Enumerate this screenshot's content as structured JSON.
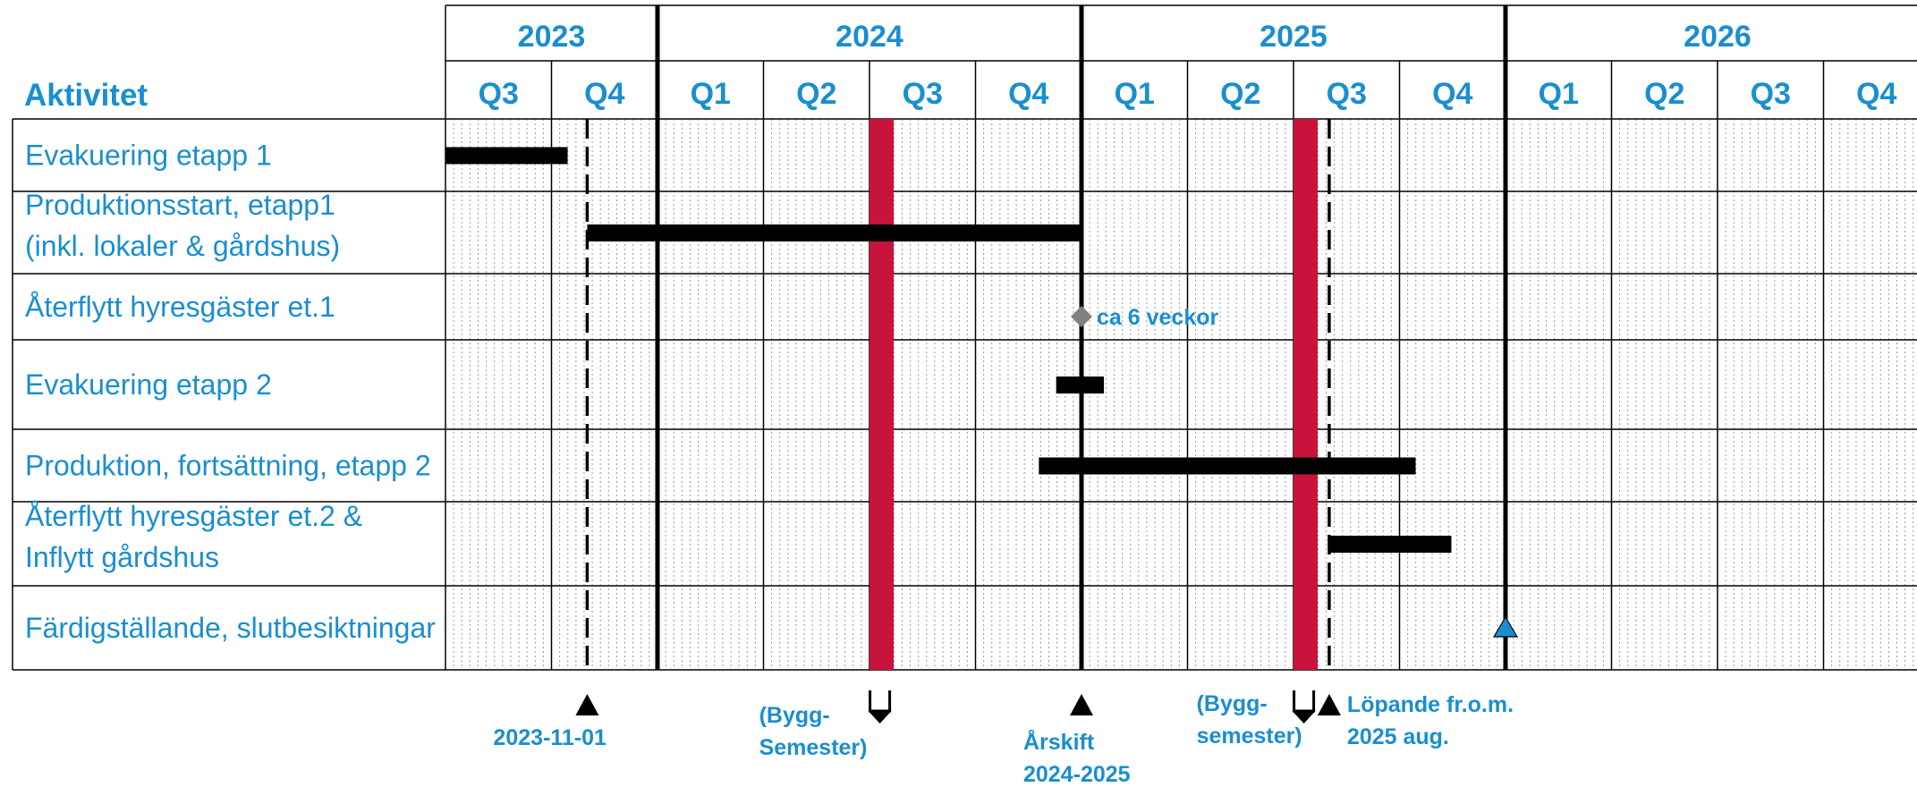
{
  "chart_data": {
    "type": "gantt",
    "activity_header": "Aktivitet",
    "years": [
      "2023",
      "2024",
      "2025",
      "2026"
    ],
    "quarters": [
      {
        "year": "2023",
        "label": "Q3"
      },
      {
        "year": "2023",
        "label": "Q4"
      },
      {
        "year": "2024",
        "label": "Q1"
      },
      {
        "year": "2024",
        "label": "Q2"
      },
      {
        "year": "2024",
        "label": "Q3"
      },
      {
        "year": "2024",
        "label": "Q4"
      },
      {
        "year": "2025",
        "label": "Q1"
      },
      {
        "year": "2025",
        "label": "Q2"
      },
      {
        "year": "2025",
        "label": "Q3"
      },
      {
        "year": "2025",
        "label": "Q4"
      },
      {
        "year": "2026",
        "label": "Q1"
      },
      {
        "year": "2026",
        "label": "Q2"
      },
      {
        "year": "2026",
        "label": "Q3"
      },
      {
        "year": "2026",
        "label": "Q4"
      }
    ],
    "time_range": [
      "2023-07-01",
      "2027-01-01"
    ],
    "activities": [
      {
        "lines": [
          "Evakuering etapp 1"
        ],
        "bar": {
          "start": "2023-07-01",
          "end": "2023-10-15"
        }
      },
      {
        "lines": [
          "Produktionsstart, etapp1",
          "(inkl. lokaler & gårdshus)"
        ],
        "bar": {
          "start": "2023-11-01",
          "end": "2025-01-01"
        }
      },
      {
        "lines": [
          "Återflytt hyresgäster et.1"
        ],
        "milestone": {
          "date": "2025-01-01",
          "label": "ca 6 veckor"
        }
      },
      {
        "lines": [
          "Evakuering etapp 2"
        ],
        "bar": {
          "start": "2024-12-10",
          "end": "2025-01-20"
        }
      },
      {
        "lines": [
          "Produktion, fortsättning, etapp 2"
        ],
        "bar": {
          "start": "2024-11-25",
          "end": "2025-10-15"
        }
      },
      {
        "lines": [
          "Återflytt hyresgäster et.2 &",
          "Inflytt gårdshus"
        ],
        "bar": {
          "start": "2025-08-01",
          "end": "2025-11-15"
        }
      },
      {
        "lines": [
          "Färdigställande, slutbesiktningar"
        ],
        "milestone": {
          "date": "2026-01-01",
          "color": "#1a8ed0"
        }
      }
    ],
    "vacations": [
      {
        "start": "2024-07-01",
        "end": "2024-07-22"
      },
      {
        "start": "2025-07-01",
        "end": "2025-07-22"
      }
    ],
    "markers": [
      {
        "date": "2023-11-01",
        "symbol": "triangle-up",
        "label_lines": [
          "2023-11-01"
        ]
      },
      {
        "date": "2024-07-10",
        "symbol": "flag-down",
        "label_lines": [
          "(Bygg-",
          "Semester)"
        ]
      },
      {
        "date": "2025-01-01",
        "symbol": "triangle-up",
        "label_lines": [
          "Årskift",
          "2024-2025"
        ]
      },
      {
        "date": "2025-07-10",
        "symbol": "flag-down",
        "label_lines": [
          "(Bygg-",
          "semester)"
        ]
      },
      {
        "date": "2025-08-01",
        "symbol": "triangle-up",
        "label_lines": [
          "Löpande fr.o.m.",
          "2025 aug."
        ]
      }
    ],
    "colors": {
      "text": "#1a8ed0",
      "bar": "#000000",
      "vacation": "#c8143c",
      "milestone": "#808080",
      "final_milestone": "#1a8ed0"
    }
  }
}
